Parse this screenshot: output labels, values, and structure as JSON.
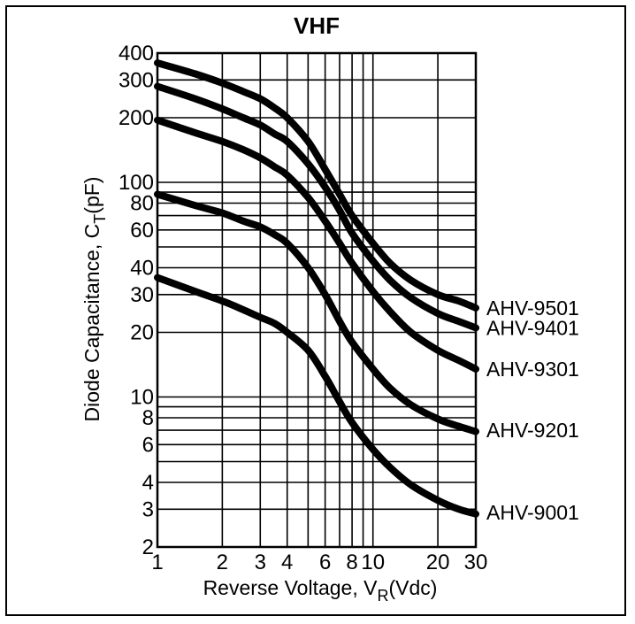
{
  "chart_data": {
    "type": "line",
    "title": "VHF",
    "xlabel": {
      "main": "Reverse Voltage, V",
      "sub": "R",
      "tail": "(Vdc)"
    },
    "ylabel": {
      "main": "Diode Capacitance, C",
      "sub": "T",
      "tail": "(pF)"
    },
    "x_scale": "log",
    "y_scale": "log",
    "xlim": [
      1,
      30
    ],
    "ylim": [
      2,
      400
    ],
    "grid": true,
    "x_ticks": [
      {
        "value": 1,
        "label": "1"
      },
      {
        "value": 2,
        "label": "2"
      },
      {
        "value": 3,
        "label": "3"
      },
      {
        "value": 4,
        "label": "4"
      },
      {
        "value": 6,
        "label": "6"
      },
      {
        "value": 8,
        "label": "8"
      },
      {
        "value": 10,
        "label": "10"
      },
      {
        "value": 20,
        "label": "20"
      },
      {
        "value": 30,
        "label": "30"
      }
    ],
    "x_grid": [
      1,
      2,
      3,
      4,
      5,
      6,
      7,
      8,
      9,
      10,
      20,
      30
    ],
    "y_ticks": [
      {
        "value": 2,
        "label": "2"
      },
      {
        "value": 3,
        "label": "3"
      },
      {
        "value": 4,
        "label": "4"
      },
      {
        "value": 6,
        "label": "6"
      },
      {
        "value": 8,
        "label": "8"
      },
      {
        "value": 10,
        "label": "10"
      },
      {
        "value": 20,
        "label": "20"
      },
      {
        "value": 30,
        "label": "30"
      },
      {
        "value": 40,
        "label": "40"
      },
      {
        "value": 60,
        "label": "60"
      },
      {
        "value": 80,
        "label": "80"
      },
      {
        "value": 100,
        "label": "100"
      },
      {
        "value": 200,
        "label": "200"
      },
      {
        "value": 300,
        "label": "300"
      },
      {
        "value": 400,
        "label": "400"
      }
    ],
    "y_grid": [
      2,
      3,
      4,
      5,
      6,
      7,
      8,
      9,
      10,
      20,
      30,
      40,
      50,
      60,
      70,
      80,
      90,
      100,
      200,
      300,
      400
    ],
    "series": [
      {
        "name": "AHV-9501",
        "label_y": 26,
        "x": [
          1,
          1.5,
          2,
          2.5,
          3,
          3.5,
          4,
          5,
          6,
          7,
          8,
          10,
          12,
          15,
          20,
          25,
          30
        ],
        "y": [
          360,
          320,
          290,
          265,
          245,
          222,
          200,
          155,
          115,
          88,
          70,
          52,
          42,
          35,
          30,
          28,
          26
        ]
      },
      {
        "name": "AHV-9401",
        "label_y": 21,
        "x": [
          1,
          1.5,
          2,
          2.5,
          3,
          3.5,
          4,
          5,
          6,
          7,
          8,
          10,
          12,
          15,
          20,
          25,
          30
        ],
        "y": [
          280,
          245,
          220,
          200,
          185,
          168,
          155,
          122,
          95,
          74,
          58,
          43,
          35,
          29,
          24.5,
          22.5,
          21
        ]
      },
      {
        "name": "AHV-9301",
        "label_y": 13.5,
        "x": [
          1,
          1.5,
          2,
          2.5,
          3,
          3.5,
          4,
          5,
          6,
          7,
          8,
          10,
          12,
          15,
          20,
          25,
          30
        ],
        "y": [
          195,
          170,
          155,
          142,
          130,
          118,
          108,
          85,
          66,
          52,
          42,
          31,
          25,
          20,
          16.5,
          14.8,
          13.5
        ]
      },
      {
        "name": "AHV-9201",
        "label_y": 7,
        "x": [
          1,
          1.5,
          2,
          2.5,
          3,
          3.5,
          4,
          5,
          6,
          7,
          8,
          10,
          12,
          15,
          20,
          25,
          30
        ],
        "y": [
          88,
          78,
          72,
          66,
          62,
          57,
          52,
          40,
          30,
          22.5,
          18,
          13.5,
          11,
          9.2,
          7.9,
          7.3,
          6.9
        ]
      },
      {
        "name": "AHV-9001",
        "label_y": 2.9,
        "x": [
          1,
          1.5,
          2,
          2.5,
          3,
          3.5,
          4,
          5,
          6,
          7,
          8,
          10,
          12,
          15,
          20,
          25,
          30
        ],
        "y": [
          36,
          31,
          28,
          25.5,
          23.5,
          22,
          20,
          16.5,
          12.5,
          9.5,
          7.6,
          5.7,
          4.7,
          3.9,
          3.3,
          3.0,
          2.85
        ]
      }
    ]
  }
}
